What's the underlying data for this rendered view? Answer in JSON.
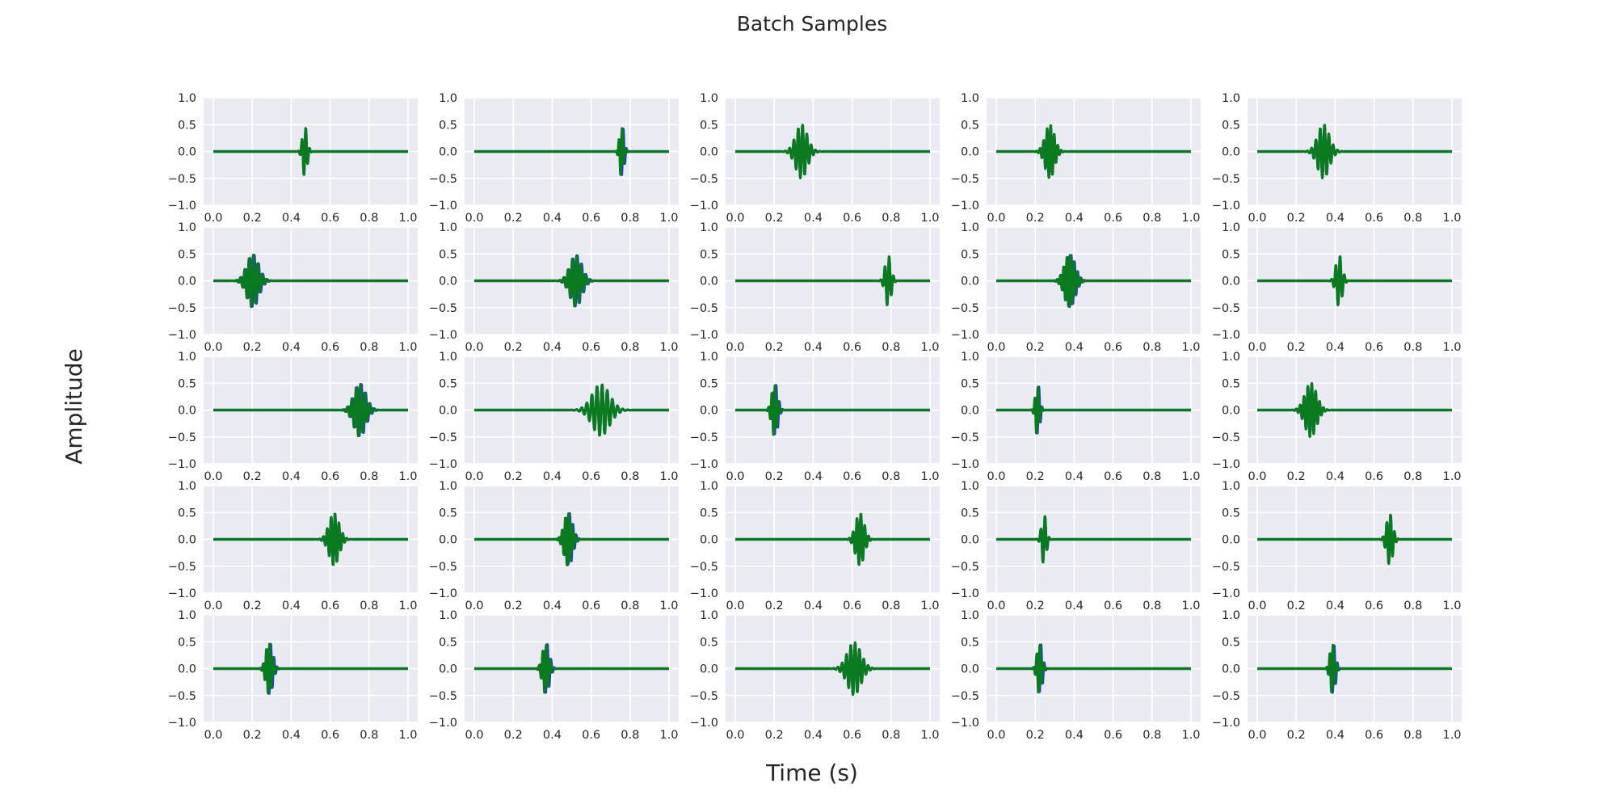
{
  "chart_data": {
    "type": "line",
    "title": "Batch Samples",
    "xlabel": "Time (s)",
    "ylabel": "Amplitude",
    "rows": 5,
    "cols": 5,
    "xlim": [
      0.0,
      1.0
    ],
    "ylim": [
      -1.0,
      1.0
    ],
    "xticks": [
      0.0,
      0.2,
      0.4,
      0.6,
      0.8,
      1.0
    ],
    "yticks": [
      1.0,
      0.5,
      0.0,
      -0.5,
      -1.0
    ],
    "xtick_labels": [
      "0.0",
      "0.2",
      "0.4",
      "0.6",
      "0.8",
      "1.0"
    ],
    "ytick_labels": [
      "1.0",
      "0.5",
      "0.0",
      "−0.5",
      "−1.0"
    ],
    "grid": true,
    "series_colors": {
      "blue": "#1f3fd1",
      "green": "#0a7a1e"
    },
    "background": "#eaeaf2",
    "gridline_color": "#ffffff",
    "panels": [
      {
        "center": 0.47,
        "width": 0.012,
        "freq": 50,
        "amp": 0.47,
        "blue_shift": 0.0
      },
      {
        "center": 0.755,
        "width": 0.01,
        "freq": 60,
        "amp": 0.47,
        "blue_shift": 0.006
      },
      {
        "center": 0.34,
        "width": 0.03,
        "freq": 45,
        "amp": 0.5,
        "blue_shift": 0.0
      },
      {
        "center": 0.275,
        "width": 0.024,
        "freq": 55,
        "amp": 0.5,
        "blue_shift": 0.0
      },
      {
        "center": 0.34,
        "width": 0.03,
        "freq": 45,
        "amp": 0.5,
        "blue_shift": 0.0
      },
      {
        "center": 0.2,
        "width": 0.03,
        "freq": 45,
        "amp": 0.49,
        "blue_shift": 0.005
      },
      {
        "center": 0.52,
        "width": 0.03,
        "freq": 45,
        "amp": 0.48,
        "blue_shift": 0.004
      },
      {
        "center": 0.785,
        "width": 0.015,
        "freq": 45,
        "amp": 0.48,
        "blue_shift": 0.0
      },
      {
        "center": 0.375,
        "width": 0.026,
        "freq": 60,
        "amp": 0.49,
        "blue_shift": 0.006
      },
      {
        "center": 0.42,
        "width": 0.016,
        "freq": 45,
        "amp": 0.48,
        "blue_shift": 0.0
      },
      {
        "center": 0.75,
        "width": 0.03,
        "freq": 45,
        "amp": 0.49,
        "blue_shift": 0.005
      },
      {
        "center": 0.65,
        "width": 0.045,
        "freq": 38,
        "amp": 0.48,
        "blue_shift": 0.0
      },
      {
        "center": 0.2,
        "width": 0.014,
        "freq": 60,
        "amp": 0.48,
        "blue_shift": 0.006
      },
      {
        "center": 0.21,
        "width": 0.01,
        "freq": 60,
        "amp": 0.47,
        "blue_shift": 0.005
      },
      {
        "center": 0.275,
        "width": 0.03,
        "freq": 50,
        "amp": 0.5,
        "blue_shift": 0.0
      },
      {
        "center": 0.62,
        "width": 0.026,
        "freq": 50,
        "amp": 0.49,
        "blue_shift": 0.0
      },
      {
        "center": 0.48,
        "width": 0.02,
        "freq": 60,
        "amp": 0.49,
        "blue_shift": 0.006
      },
      {
        "center": 0.64,
        "width": 0.022,
        "freq": 50,
        "amp": 0.49,
        "blue_shift": 0.0
      },
      {
        "center": 0.245,
        "width": 0.012,
        "freq": 45,
        "amp": 0.47,
        "blue_shift": 0.0
      },
      {
        "center": 0.68,
        "width": 0.016,
        "freq": 50,
        "amp": 0.48,
        "blue_shift": 0.0
      },
      {
        "center": 0.285,
        "width": 0.016,
        "freq": 60,
        "amp": 0.48,
        "blue_shift": 0.006
      },
      {
        "center": 0.365,
        "width": 0.016,
        "freq": 55,
        "amp": 0.47,
        "blue_shift": 0.006
      },
      {
        "center": 0.61,
        "width": 0.035,
        "freq": 45,
        "amp": 0.49,
        "blue_shift": 0.0
      },
      {
        "center": 0.22,
        "width": 0.012,
        "freq": 60,
        "amp": 0.47,
        "blue_shift": 0.006
      },
      {
        "center": 0.385,
        "width": 0.012,
        "freq": 60,
        "amp": 0.47,
        "blue_shift": 0.006
      }
    ]
  }
}
